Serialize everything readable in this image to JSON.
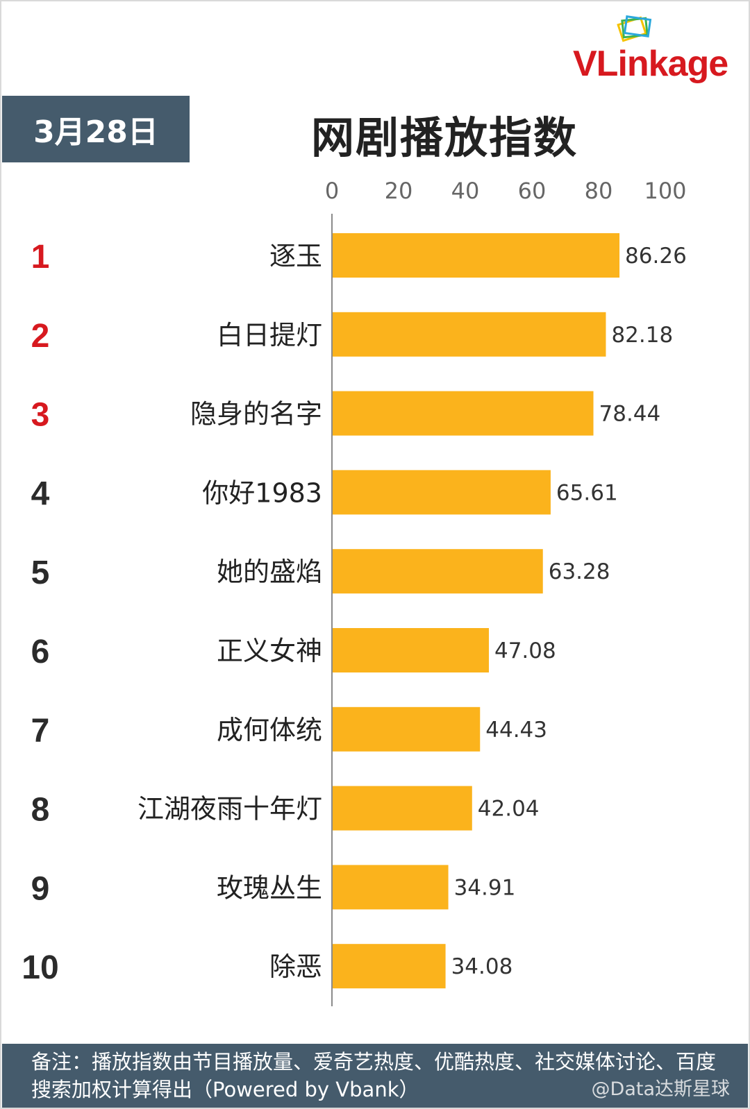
{
  "brand": {
    "logo_text": "VLinkage",
    "logo_color": "#d7191f"
  },
  "date_label": "3月28日",
  "title": "网剧播放指数",
  "colors": {
    "bar": "#fbb31c",
    "header_bg": "#455b6c",
    "rank_top3": "#d7191f",
    "rank_other": "#2b2b2b"
  },
  "chart_data": {
    "type": "bar",
    "orientation": "horizontal",
    "title": "网剧播放指数",
    "xlim": [
      0,
      100
    ],
    "x_ticks": [
      "0",
      "20",
      "40",
      "60",
      "80",
      "100"
    ],
    "ranks": [
      "1",
      "2",
      "3",
      "4",
      "5",
      "6",
      "7",
      "8",
      "9",
      "10"
    ],
    "categories": [
      "逐玉",
      "白日提灯",
      "隐身的名字",
      "你好1983",
      "她的盛焰",
      "正义女神",
      "成何体统",
      "江湖夜雨十年灯",
      "玫瑰丛生",
      "除恶"
    ],
    "values": [
      86.26,
      82.18,
      78.44,
      65.61,
      63.28,
      47.08,
      44.43,
      42.04,
      34.91,
      34.08
    ],
    "value_labels": [
      "86.26",
      "82.18",
      "78.44",
      "65.61",
      "63.28",
      "47.08",
      "44.43",
      "42.04",
      "34.91",
      "34.08"
    ],
    "grid": false,
    "legend": "none"
  },
  "footer": {
    "note": "备注：播放指数由节目播放量、爱奇艺热度、优酷热度、社交媒体讨论、百度搜索加权计算得出（Powered by Vbank）",
    "watermark": "@Data达斯星球"
  }
}
